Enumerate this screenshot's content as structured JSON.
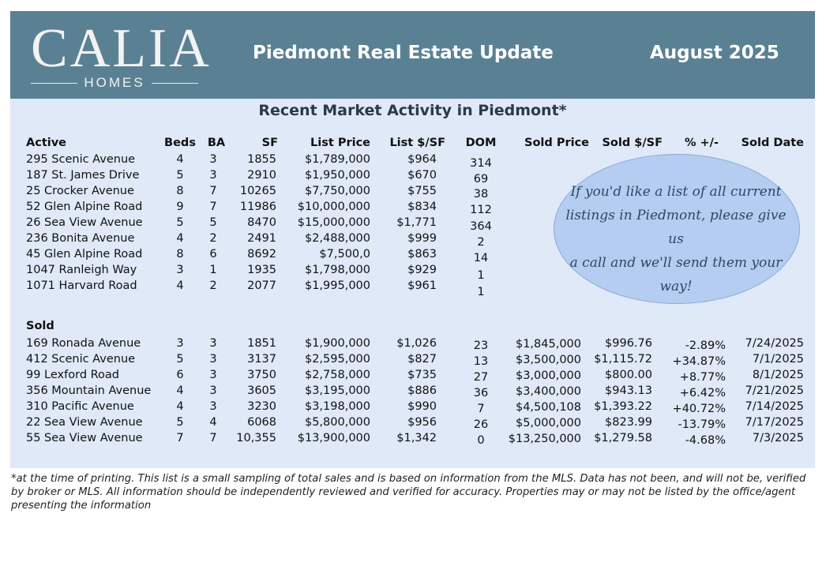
{
  "header": {
    "logo_word": "CALIA",
    "logo_sub": "HOMES",
    "title": "Piedmont Real Estate Update",
    "date": "August 2025"
  },
  "panel": {
    "title": "Recent Market Activity in Piedmont*"
  },
  "active": {
    "section_label": "Active",
    "headers": [
      "Beds",
      "BA",
      "SF",
      "List Price",
      "List $/SF",
      "DOM",
      "Sold Price",
      "Sold $/SF",
      "% +/-",
      "Sold Date"
    ],
    "rows": [
      [
        "295 Scenic Avenue",
        "4",
        "3",
        "1855",
        "$1,789,000",
        "$964",
        "314"
      ],
      [
        "187 St. James Drive",
        "5",
        "3",
        "2910",
        "$1,950,000",
        "$670",
        "69"
      ],
      [
        "25 Crocker Avenue",
        "8",
        "7",
        "10265",
        "$7,750,000",
        "$755",
        "38"
      ],
      [
        "52 Glen Alpine Road",
        "9",
        "7",
        "11986",
        "$10,000,000",
        "$834",
        "112"
      ],
      [
        "26 Sea View Avenue",
        "5",
        "5",
        "8470",
        "$15,000,000",
        "$1,771",
        "364"
      ],
      [
        "236 Bonita Avenue",
        "4",
        "2",
        "2491",
        "$2,488,000",
        "$999",
        "2"
      ],
      [
        "45 Glen Alpine Road",
        "8",
        "6",
        "8692",
        "$7,500,0",
        "$863",
        "14"
      ],
      [
        "1047 Ranleigh Way",
        "3",
        "1",
        "1935",
        "$1,798,000",
        "$929",
        "1"
      ],
      [
        "1071 Harvard Road",
        "4",
        "2",
        "2077",
        "$1,995,000",
        "$961",
        "1"
      ]
    ]
  },
  "sold": {
    "section_label": "Sold",
    "rows": [
      [
        "169 Ronada Avenue",
        "3",
        "3",
        "1851",
        "$1,900,000",
        "$1,026",
        "23",
        "$1,845,000",
        "$996.76",
        "-2.89%",
        "7/24/2025"
      ],
      [
        "412 Scenic Avenue",
        "5",
        "3",
        "3137",
        "$2,595,000",
        "$827",
        "13",
        "$3,500,000",
        "$1,115.72",
        "+34.87%",
        "7/1/2025"
      ],
      [
        "99 Lexford Road",
        "6",
        "3",
        "3750",
        "$2,758,000",
        "$735",
        "27",
        "$3,000,000",
        "$800.00",
        "+8.77%",
        "8/1/2025"
      ],
      [
        "356 Mountain Avenue",
        "4",
        "3",
        "3605",
        "$3,195,000",
        "$886",
        "36",
        "$3,400,000",
        "$943.13",
        "+6.42%",
        "7/21/2025"
      ],
      [
        "310 Pacific Avenue",
        "4",
        "3",
        "3230",
        "$3,198,000",
        "$990",
        "7",
        "$4,500,108",
        "$1,393.22",
        "+40.72%",
        "7/14/2025"
      ],
      [
        "22 Sea View Avenue",
        "5",
        "4",
        "6068",
        "$5,800,000",
        "$956",
        "26",
        "$5,000,000",
        "$823.99",
        "-13.79%",
        "7/17/2025"
      ],
      [
        "55 Sea View Avenue",
        "7",
        "7",
        "10,355",
        "$13,900,000",
        "$1,342",
        "0",
        "$13,250,000",
        "$1,279.58",
        "-4.68%",
        "7/3/2025"
      ]
    ]
  },
  "bubble": {
    "lines": [
      "If you'd like a list of all current",
      "listings in Piedmont, please give us",
      "a call and we'll send them your",
      "way!"
    ]
  },
  "footnote": "*at the time of printing. This list is a small sampling of total sales and is based on information from the MLS. Data has not been, and will not be, verified by broker or MLS. All information should be independently reviewed and verified for accuracy. Properties may or may not be listed by the office/agent presenting the information",
  "colors": {
    "header_bg": "#5a8193",
    "panel_bg": "#dfe9f8",
    "bubble_bg": "#b6cdf2"
  }
}
